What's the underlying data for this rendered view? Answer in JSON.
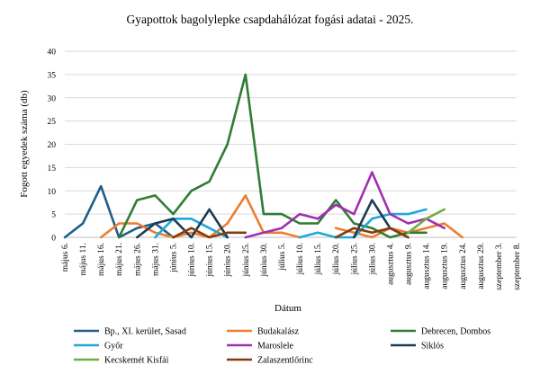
{
  "chart_data": {
    "type": "line",
    "title": "Gyapottok bagolylepke csapdahálózat fogási adatai - 2025.",
    "xlabel": "Dátum",
    "ylabel": "Fogott egyedek száma (db)",
    "ylim": [
      0,
      40
    ],
    "yticks": [
      0,
      5,
      10,
      15,
      20,
      25,
      30,
      35,
      40
    ],
    "grid": true,
    "legend_position": "bottom",
    "categories": [
      "május 6.",
      "május 11.",
      "május 16.",
      "május 21.",
      "május 26.",
      "május 31.",
      "június 5.",
      "június 10.",
      "június 15.",
      "június 20.",
      "június 25.",
      "június 30.",
      "július 5.",
      "július 10.",
      "július 15.",
      "július 20.",
      "július 25.",
      "július 30.",
      "augusztus 4.",
      "augusztus 9.",
      "augusztus 14.",
      "augusztus 19.",
      "augusztus 24.",
      "augusztus 29.",
      "szeptember 3.",
      "szeptember 8."
    ],
    "xtick_labels": [
      "május 6.",
      "május 11.",
      "május 16.",
      "május 21.",
      "május 26.",
      "május 31.",
      "június 5.",
      "június 10.",
      "június 15.",
      "június 20.",
      "június 25.",
      "június 30.",
      "július 5.",
      "július 10.",
      "július 15.",
      "július 20.",
      "július 25.",
      "július 30.",
      "augusztus 4.",
      "augusztus 9.",
      "augusztus 14.",
      "augusztus 19.",
      "augusztus 24.",
      "augusztus 29.",
      "szeptember 3.",
      "szeptember 8."
    ],
    "series": [
      {
        "name": "Bp., XI. kerület, Sasad",
        "color": "#1f5f8b",
        "values": [
          0,
          3,
          11,
          0,
          2,
          3,
          0,
          null,
          null,
          null,
          null,
          null,
          null,
          null,
          null,
          null,
          null,
          null,
          null,
          null,
          null,
          null,
          null,
          null,
          null,
          null
        ]
      },
      {
        "name": "Budakalász",
        "color": "#ed7d31",
        "values": [
          null,
          null,
          0,
          3,
          3,
          1,
          0,
          1,
          0,
          3,
          9,
          1,
          1,
          0,
          null,
          2,
          1,
          0,
          2,
          1,
          2,
          3,
          0,
          null,
          null,
          null
        ]
      },
      {
        "name": "Debrecen, Dombos",
        "color": "#2e7d32",
        "values": [
          null,
          null,
          null,
          0,
          8,
          9,
          5,
          10,
          12,
          20,
          35,
          5,
          5,
          3,
          3,
          8,
          3,
          2,
          0,
          1,
          1,
          null,
          null,
          null,
          null,
          null
        ]
      },
      {
        "name": "Győr",
        "color": "#1fa9d6",
        "values": [
          null,
          null,
          null,
          null,
          null,
          0,
          4,
          4,
          2,
          0,
          null,
          null,
          null,
          0,
          1,
          0,
          0,
          4,
          5,
          5,
          6,
          null,
          null,
          null,
          null,
          null
        ]
      },
      {
        "name": "Maroslele",
        "color": "#a12fb1",
        "values": [
          null,
          null,
          null,
          null,
          null,
          null,
          null,
          null,
          null,
          null,
          0,
          1,
          2,
          5,
          4,
          7,
          5,
          14,
          5,
          3,
          4,
          2,
          null,
          null,
          null,
          null
        ]
      },
      {
        "name": "Siklós",
        "color": "#1c3b57",
        "values": [
          null,
          null,
          null,
          null,
          0,
          3,
          4,
          0,
          6,
          0,
          null,
          null,
          null,
          null,
          null,
          null,
          0,
          8,
          2,
          0,
          null,
          null,
          null,
          null,
          null,
          null
        ]
      },
      {
        "name": "Kecskemét Kisfái",
        "color": "#70ad47",
        "values": [
          null,
          null,
          null,
          null,
          null,
          null,
          null,
          null,
          null,
          null,
          null,
          null,
          null,
          null,
          null,
          null,
          null,
          null,
          null,
          1,
          4,
          6,
          null,
          null,
          null,
          null
        ]
      },
      {
        "name": "Zalaszentlőrinc",
        "color": "#843c0c",
        "values": [
          null,
          null,
          null,
          null,
          null,
          null,
          0,
          2,
          0,
          1,
          1,
          null,
          null,
          null,
          null,
          0,
          2,
          1,
          2,
          0,
          null,
          null,
          null,
          null,
          null,
          null
        ]
      }
    ]
  }
}
